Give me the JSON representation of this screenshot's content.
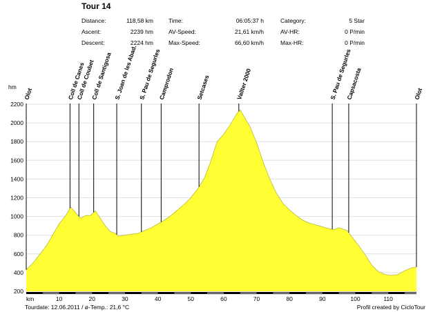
{
  "header": {
    "title": "Tour 14",
    "stats": [
      {
        "label": "Distance:",
        "value": "118,58 km"
      },
      {
        "label": "Ascent:",
        "value": "2239 hm"
      },
      {
        "label": "Descent:",
        "value": "2224 hm"
      },
      {
        "label": "Time:",
        "value": "06:05:37 h"
      },
      {
        "label": "AV-Speed:",
        "value": "21,61 km/h"
      },
      {
        "label": "Max-Speed:",
        "value": "66,60 km/h"
      },
      {
        "label": "Category:",
        "value": "5 Star"
      },
      {
        "label": "AV-HR:",
        "value": "0 P/min"
      },
      {
        "label": "Max-HR:",
        "value": "0 P/min"
      }
    ]
  },
  "footer": {
    "tourdate": "Tourdate: 12.06.2011  /  ø-Temp.: 21,6 °C",
    "credit": "Profil created by CicloTour"
  },
  "colors": {
    "fill": "#ffff33",
    "line": "#000000",
    "grid": "#e0e0e0"
  },
  "chart_data": {
    "type": "area",
    "xlabel": "km",
    "ylabel": "hm",
    "xlim": [
      0,
      118.58
    ],
    "ylim": [
      200,
      2200
    ],
    "xticks": [
      10,
      20,
      30,
      40,
      50,
      60,
      70,
      80,
      90,
      100,
      110
    ],
    "yticks": [
      200,
      400,
      600,
      800,
      1000,
      1200,
      1400,
      1600,
      1800,
      2000,
      2200
    ],
    "grid": true,
    "series": [
      {
        "x": [
          0,
          2,
          4,
          6,
          8,
          10,
          12,
          13.5,
          15,
          16.5,
          18,
          19.5,
          21,
          22.5,
          24,
          25.5,
          27,
          28,
          30,
          32,
          34,
          36,
          38,
          40,
          42,
          44,
          46,
          48,
          50,
          52,
          54,
          56,
          58,
          60,
          62,
          64,
          65,
          66,
          68,
          70,
          72,
          74,
          76,
          78,
          80,
          82,
          84,
          86,
          88,
          90,
          92,
          93.5,
          95,
          97.5,
          99,
          101,
          103,
          105,
          107,
          109,
          111,
          113,
          115,
          117,
          118.58
        ],
        "y": [
          430,
          500,
          590,
          680,
          800,
          920,
          1010,
          1100,
          1040,
          980,
          1010,
          1010,
          1060,
          980,
          900,
          840,
          820,
          790,
          800,
          810,
          820,
          850,
          880,
          920,
          960,
          1010,
          1070,
          1130,
          1200,
          1290,
          1400,
          1580,
          1800,
          1880,
          1980,
          2100,
          2140,
          2080,
          1960,
          1790,
          1580,
          1400,
          1250,
          1140,
          1070,
          1010,
          960,
          930,
          910,
          890,
          870,
          860,
          880,
          850,
          780,
          690,
          590,
          480,
          410,
          380,
          370,
          380,
          420,
          450,
          460
        ]
      }
    ],
    "waypoints": [
      {
        "name": "Olot",
        "km": 0
      },
      {
        "name": "Coll de Canes",
        "km": 13.3
      },
      {
        "name": "Coll de Coubet",
        "km": 16
      },
      {
        "name": "Coll de Santigosa",
        "km": 20.5
      },
      {
        "name": "S. Joan de les Abad.",
        "km": 27.5
      },
      {
        "name": "S. Pau de Segurles",
        "km": 35
      },
      {
        "name": "Camprodon",
        "km": 41
      },
      {
        "name": "Setcases",
        "km": 52.5
      },
      {
        "name": "Vallter 2000",
        "km": 64.6
      },
      {
        "name": "S. Pau de Segurles",
        "km": 93
      },
      {
        "name": "Capsacosta",
        "km": 98
      },
      {
        "name": "Olot",
        "km": 118.58
      }
    ]
  }
}
